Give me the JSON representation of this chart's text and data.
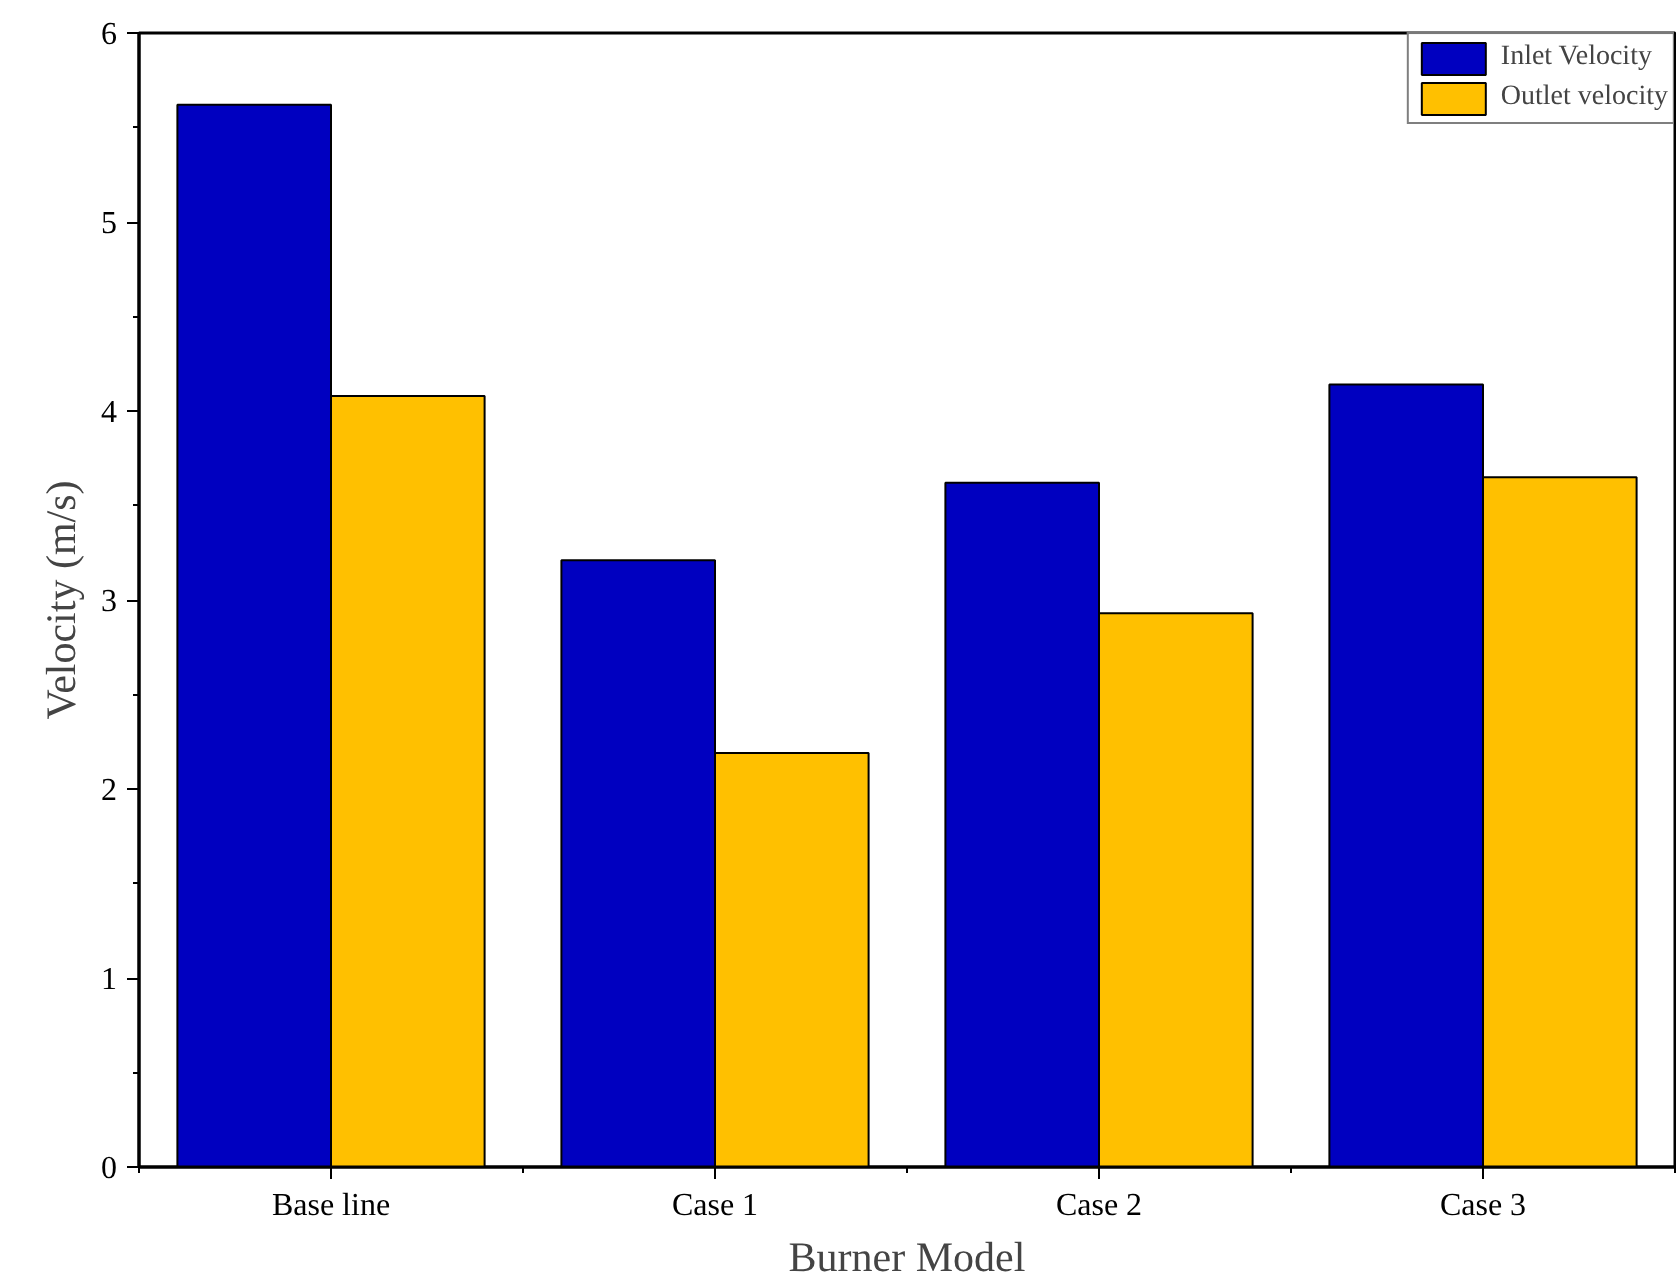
{
  "chart_data": {
    "type": "bar",
    "xlabel": "Burner Model",
    "ylabel": "Velocity (m/s)",
    "categories": [
      "Base line",
      "Case 1",
      "Case 2",
      "Case 3"
    ],
    "series": [
      {
        "name": "Inlet Velocity",
        "color": "#0000c0",
        "values": [
          5.62,
          3.21,
          3.62,
          4.14
        ]
      },
      {
        "name": "Outlet velocity",
        "color": "#ffc000",
        "values": [
          4.08,
          2.19,
          2.93,
          3.65
        ]
      }
    ],
    "ylim": [
      0,
      6
    ],
    "yticks": [
      0,
      1,
      2,
      3,
      4,
      5,
      6
    ],
    "grid": false,
    "legend": "top right"
  }
}
